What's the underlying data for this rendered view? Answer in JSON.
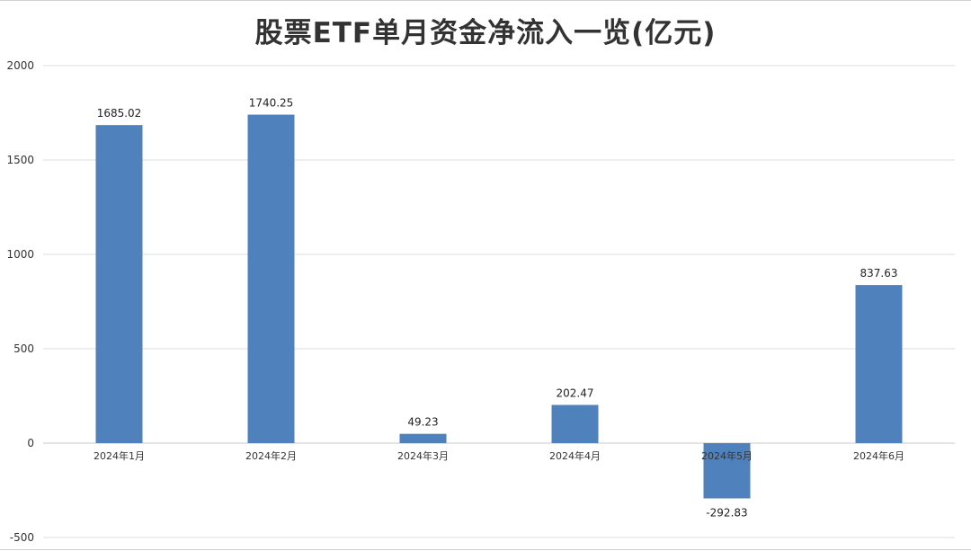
{
  "chart_data": {
    "type": "bar",
    "title": "股票ETF单月资金净流入一览(亿元)",
    "xlabel": "",
    "ylabel": "",
    "categories": [
      "2024年1月",
      "2024年2月",
      "2024年3月",
      "2024年4月",
      "2024年5月",
      "2024年6月"
    ],
    "series": [
      {
        "values": [
          1685.02,
          1740.25,
          49.23,
          202.47,
          -292.83,
          837.63
        ]
      }
    ],
    "data_labels": [
      "1685.02",
      "1740.25",
      "49.23",
      "202.47",
      "-292.83",
      "837.63"
    ],
    "ylim": [
      -500,
      2000
    ],
    "yticks": [
      -500,
      0,
      500,
      1000,
      1500,
      2000
    ],
    "ytick_labels": [
      "-500",
      "0",
      "500",
      "1000",
      "1500",
      "2000"
    ],
    "grid": true,
    "legend": "none",
    "bar_color": "#4f81bd"
  }
}
